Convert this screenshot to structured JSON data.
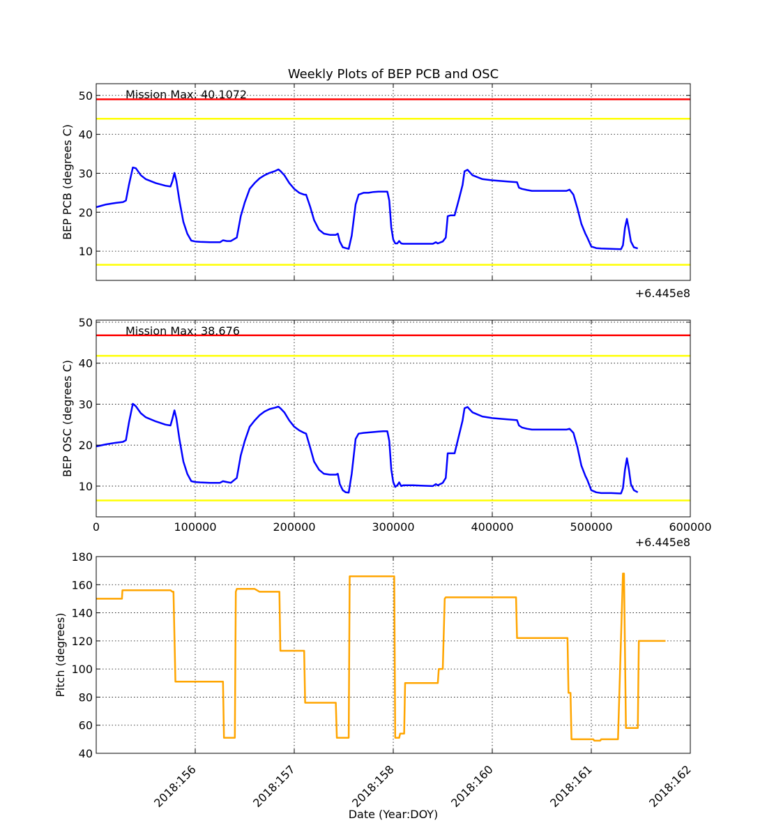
{
  "figure": {
    "title": "Weekly Plots of BEP PCB and OSC"
  },
  "chart_data": [
    {
      "type": "line",
      "ylabel": "BEP PCB (degrees C)",
      "offset_label": "+6.445e8",
      "annotation": "Mission Max: 40.1072",
      "xlim": [
        0,
        600000
      ],
      "ylim": [
        2.5,
        53
      ],
      "yticks": [
        10,
        20,
        30,
        40,
        50
      ],
      "x_tick_labels_shown": false,
      "grid": true,
      "reference_lines": [
        {
          "y": 49.0,
          "color": "#ff0000"
        },
        {
          "y": 44.0,
          "color": "#ffff00"
        },
        {
          "y": 6.5,
          "color": "#ffff00"
        }
      ],
      "series": [
        {
          "color": "#0000ff",
          "x": [
            0,
            10000,
            20000,
            27000,
            30000,
            33000,
            37000,
            40000,
            45000,
            50000,
            60000,
            70000,
            75000,
            77000,
            79000,
            81000,
            84000,
            88000,
            92000,
            96000,
            100000,
            105000,
            115000,
            125000,
            128000,
            132000,
            136000,
            142000,
            146000,
            150000,
            155000,
            160000,
            165000,
            170000,
            175000,
            180000,
            184000,
            186000,
            190000,
            195000,
            200000,
            205000,
            210000,
            212000,
            216000,
            220000,
            225000,
            230000,
            236000,
            242000,
            244000,
            246000,
            249000,
            252000,
            255000,
            258000,
            262000,
            265000,
            270000,
            275000,
            280000,
            285000,
            290000,
            294000,
            296000,
            298000,
            300000,
            302000,
            304000,
            306000,
            308000,
            310000,
            320000,
            330000,
            340000,
            343000,
            345000,
            350000,
            353000,
            355000,
            358000,
            362000,
            366000,
            370000,
            372000,
            375000,
            380000,
            390000,
            400000,
            410000,
            420000,
            425000,
            427000,
            430000,
            435000,
            440000,
            450000,
            460000,
            470000,
            475000,
            478000,
            482000,
            486000,
            490000,
            494000,
            496000,
            500000,
            505000,
            510000,
            520000,
            530000,
            532000,
            534000,
            536000,
            538000,
            540000,
            543000,
            547000
          ],
          "y": [
            21.3,
            22.0,
            22.4,
            22.6,
            23.0,
            27.0,
            31.5,
            31.3,
            29.5,
            28.5,
            27.5,
            26.8,
            26.6,
            28.0,
            30.1,
            28.0,
            23.0,
            17.5,
            14.5,
            12.7,
            12.5,
            12.4,
            12.3,
            12.3,
            12.8,
            12.6,
            12.6,
            13.5,
            19.0,
            22.5,
            26.0,
            27.5,
            28.7,
            29.5,
            30.1,
            30.5,
            31.0,
            30.6,
            29.5,
            27.5,
            26.0,
            25.0,
            24.5,
            24.5,
            21.5,
            18.0,
            15.5,
            14.5,
            14.2,
            14.2,
            14.5,
            12.5,
            11.0,
            10.8,
            10.6,
            14.0,
            22.0,
            24.5,
            25.0,
            25.0,
            25.2,
            25.3,
            25.3,
            25.3,
            23.0,
            16.0,
            13.0,
            12.0,
            12.0,
            12.6,
            12.0,
            11.9,
            11.9,
            11.9,
            11.9,
            12.3,
            12.0,
            12.5,
            13.5,
            19.0,
            19.2,
            19.2,
            23.0,
            27.0,
            30.5,
            30.9,
            29.5,
            28.5,
            28.2,
            28.0,
            27.8,
            27.7,
            26.3,
            26.0,
            25.7,
            25.5,
            25.5,
            25.5,
            25.5,
            25.5,
            25.8,
            24.5,
            21.0,
            17.0,
            14.5,
            13.5,
            11.2,
            10.8,
            10.7,
            10.6,
            10.5,
            11.5,
            16.0,
            18.3,
            15.5,
            12.5,
            11.0,
            10.7
          ]
        }
      ]
    },
    {
      "type": "line",
      "ylabel": "BEP OSC (degrees C)",
      "offset_label": "+6.445e8",
      "annotation": "Mission Max: 38.676",
      "xlim": [
        0,
        600000
      ],
      "ylim": [
        2.5,
        50.5
      ],
      "yticks": [
        10,
        20,
        30,
        40,
        50
      ],
      "xticks": [
        0,
        100000,
        200000,
        300000,
        400000,
        500000,
        600000
      ],
      "x_tick_labels": [
        "0",
        "100000",
        "200000",
        "300000",
        "400000",
        "500000",
        "600000"
      ],
      "grid": true,
      "reference_lines": [
        {
          "y": 46.8,
          "color": "#ff0000"
        },
        {
          "y": 41.8,
          "color": "#ffff00"
        },
        {
          "y": 6.5,
          "color": "#ffff00"
        }
      ],
      "series": [
        {
          "color": "#0000ff",
          "x": [
            0,
            10000,
            20000,
            27000,
            30000,
            33000,
            37000,
            40000,
            45000,
            50000,
            60000,
            70000,
            75000,
            77000,
            79000,
            81000,
            84000,
            88000,
            92000,
            96000,
            100000,
            105000,
            115000,
            125000,
            128000,
            132000,
            136000,
            142000,
            146000,
            150000,
            155000,
            160000,
            165000,
            170000,
            175000,
            180000,
            184000,
            186000,
            190000,
            195000,
            200000,
            205000,
            210000,
            212000,
            216000,
            220000,
            225000,
            230000,
            236000,
            242000,
            244000,
            246000,
            249000,
            252000,
            255000,
            258000,
            262000,
            265000,
            270000,
            275000,
            280000,
            285000,
            290000,
            294000,
            296000,
            298000,
            300000,
            302000,
            304000,
            306000,
            308000,
            310000,
            320000,
            330000,
            340000,
            343000,
            345000,
            350000,
            353000,
            355000,
            358000,
            362000,
            366000,
            370000,
            372000,
            375000,
            380000,
            390000,
            400000,
            410000,
            420000,
            425000,
            427000,
            430000,
            435000,
            440000,
            450000,
            460000,
            470000,
            475000,
            478000,
            482000,
            486000,
            490000,
            494000,
            496000,
            500000,
            505000,
            510000,
            520000,
            530000,
            532000,
            534000,
            536000,
            538000,
            540000,
            543000,
            547000
          ],
          "y": [
            19.7,
            20.2,
            20.6,
            20.8,
            21.2,
            25.5,
            30.1,
            29.5,
            27.8,
            26.8,
            25.8,
            25.0,
            24.8,
            26.5,
            28.5,
            26.5,
            21.5,
            16.0,
            13.0,
            11.2,
            11.0,
            10.9,
            10.8,
            10.8,
            11.2,
            11.0,
            10.8,
            12.0,
            17.5,
            21.0,
            24.5,
            26.0,
            27.3,
            28.2,
            28.8,
            29.1,
            29.4,
            29.0,
            28.0,
            26.0,
            24.5,
            23.6,
            23.0,
            22.8,
            19.5,
            16.0,
            14.0,
            13.0,
            12.8,
            12.8,
            13.0,
            10.5,
            9.0,
            8.5,
            8.4,
            13.0,
            21.5,
            22.8,
            23.0,
            23.1,
            23.2,
            23.3,
            23.4,
            23.4,
            21.0,
            14.0,
            11.0,
            9.8,
            10.2,
            10.9,
            10.0,
            10.2,
            10.2,
            10.1,
            10.0,
            10.5,
            10.2,
            10.8,
            12.0,
            18.0,
            18.0,
            18.0,
            22.0,
            26.0,
            29.0,
            29.3,
            28.0,
            27.0,
            26.6,
            26.4,
            26.2,
            26.1,
            24.8,
            24.3,
            24.0,
            23.8,
            23.8,
            23.8,
            23.8,
            23.8,
            24.0,
            23.0,
            19.5,
            15.0,
            12.5,
            11.5,
            9.0,
            8.5,
            8.3,
            8.3,
            8.2,
            9.5,
            14.0,
            16.8,
            14.0,
            10.5,
            9.0,
            8.5
          ]
        }
      ]
    },
    {
      "type": "line",
      "ylabel": "Pitch (degrees)",
      "xlabel": "Date (Year:DOY)",
      "xlim": [
        0,
        600000
      ],
      "ylim": [
        40,
        180
      ],
      "yticks": [
        40,
        60,
        80,
        100,
        120,
        140,
        160,
        180
      ],
      "xticks": [
        100000,
        200000,
        300000,
        400000,
        500000,
        600000
      ],
      "x_tick_labels": [
        "2018:156",
        "2018:157",
        "2018:158",
        "2018:160",
        "2018:161",
        "2018:162"
      ],
      "grid": true,
      "series": [
        {
          "color": "#ffa500",
          "x": [
            0,
            26000,
            26500,
            35000,
            45000,
            55000,
            70000,
            75000,
            77000,
            78000,
            80000,
            90000,
            100000,
            110000,
            120000,
            128000,
            129000,
            130000,
            140000,
            141000,
            142000,
            155000,
            160000,
            165000,
            170000,
            185000,
            186000,
            195000,
            205000,
            210000,
            211000,
            230000,
            242000,
            243000,
            253000,
            255000,
            256000,
            270000,
            290000,
            300000,
            301000,
            302000,
            306000,
            307000,
            310000,
            311000,
            312000,
            330000,
            345000,
            346000,
            350000,
            352000,
            353000,
            360000,
            365000,
            380000,
            420000,
            424000,
            425000,
            450000,
            474000,
            476000,
            477000,
            479000,
            480000,
            490000,
            500000,
            502000,
            503000,
            509000,
            510000,
            524000,
            526000,
            527000,
            532000,
            533000,
            535000,
            536000,
            546000,
            547000,
            548000,
            575000
          ],
          "y": [
            150,
            150,
            156,
            156,
            156,
            156,
            156,
            156,
            155,
            155,
            91,
            91,
            91,
            91,
            91,
            91,
            51,
            51,
            51,
            155,
            157,
            157,
            157,
            155,
            155,
            155,
            113,
            113,
            113,
            113,
            76,
            76,
            76,
            51,
            51,
            51,
            166,
            166,
            166,
            166,
            166,
            51,
            51,
            54,
            54,
            54,
            90,
            90,
            90,
            100,
            100,
            150,
            151,
            151,
            151,
            151,
            151,
            151,
            122,
            122,
            122,
            122,
            83,
            83,
            50,
            50,
            50,
            50,
            49,
            49,
            50,
            50,
            50,
            50,
            168,
            168,
            58,
            58,
            58,
            58,
            120,
            120
          ]
        }
      ]
    }
  ]
}
